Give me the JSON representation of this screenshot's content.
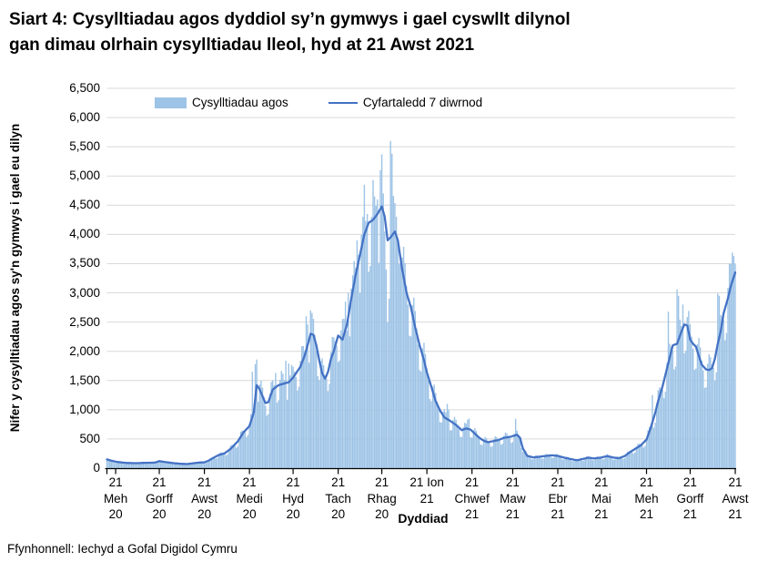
{
  "title": "Siart 4: Cysylltiadau agos dyddiol sy’n gymwys i gael cyswllt dilynol\ngan dimau olrhain cysylltiadau lleol, hyd at 21 Awst 2021",
  "source": "Ffynhonnell: Iechyd a Gofal Digidol Cymru",
  "legend": [
    {
      "label": "Cysylltiadau agos",
      "marker": "bar-swatch"
    },
    {
      "label": "Cyfartaledd 7 diwrnod",
      "marker": "line-sample"
    }
  ],
  "y_axis": {
    "title": "Nifer y cysylltiadau agos sy'n gymwys i gael eu dilyn",
    "tick_labels": [
      "0",
      "500",
      "1,000",
      "1,500",
      "2,000",
      "2,500",
      "3,000",
      "3,500",
      "4,000",
      "4,500",
      "5,000",
      "5,500",
      "6,000",
      "6,500"
    ]
  },
  "x_axis": {
    "title": "Dyddiad",
    "ticks": [
      {
        "lines": [
          "21",
          "Meh",
          "20"
        ]
      },
      {
        "lines": [
          "21",
          "Gorff",
          "20"
        ]
      },
      {
        "lines": [
          "21",
          "Awst",
          "20"
        ]
      },
      {
        "lines": [
          "21",
          "Medi",
          "20"
        ]
      },
      {
        "lines": [
          "21",
          "Hyd",
          "20"
        ]
      },
      {
        "lines": [
          "21",
          "Tach",
          "20"
        ]
      },
      {
        "lines": [
          "21",
          "Rhag",
          "20"
        ]
      },
      {
        "lines": [
          "21 Ion",
          "21"
        ]
      },
      {
        "lines": [
          "21",
          "Chwef",
          "21"
        ]
      },
      {
        "lines": [
          "21",
          "Maw",
          "21"
        ]
      },
      {
        "lines": [
          "21",
          "Ebr",
          "21"
        ]
      },
      {
        "lines": [
          "21",
          "Mai",
          "21"
        ]
      },
      {
        "lines": [
          "21",
          "Meh",
          "21"
        ]
      },
      {
        "lines": [
          "21",
          "Gorff",
          "21"
        ]
      },
      {
        "lines": [
          "21",
          "Awst",
          "21"
        ]
      }
    ]
  },
  "colors": {
    "bar": "#9DC3E6",
    "line": "#4472C4",
    "gridline": "#D9D9D9",
    "axis": "#000000",
    "text": "#000000",
    "background": "#FFFFFF"
  },
  "chart_data": {
    "type": "bar+line",
    "title": "Siart 4: Cysylltiadau agos dyddiol sy’n gymwys i gael cyswllt dilynol gan dimau olrhain cysylltiadau lleol, hyd at 21 Awst 2021",
    "xlabel": "Dyddiad",
    "ylabel": "Nifer y cysylltiadau agos sy'n gymwys i gael eu dilyn",
    "ylim": [
      0,
      6500
    ],
    "grid": true,
    "legend_position": "top",
    "n_days": 433,
    "tick_day_indices": [
      6,
      36,
      67,
      98,
      128,
      159,
      189,
      220,
      251,
      279,
      310,
      340,
      371,
      401,
      432
    ],
    "series": [
      {
        "name": "Cysylltiadau agos",
        "type": "bar",
        "color": "#9DC3E6",
        "daily_model": {
          "baseline": "interpolated 7-day-average points",
          "weekday_factors": [
            1.06,
            1.16,
            1.12,
            1.04,
            0.96,
            0.8,
            0.82
          ],
          "overrides": {
            "100": 1650,
            "102": 1780,
            "103": 1860,
            "116": 1630,
            "123": 1840,
            "125": 1790,
            "137": 2600,
            "138": 2460,
            "140": 2700,
            "164": 2850,
            "166": 3000,
            "169": 3300,
            "172": 3900,
            "173": 3650,
            "176": 4300,
            "177": 4850,
            "179": 4350,
            "182": 4300,
            "184": 4650,
            "186": 4600,
            "188": 5100,
            "189": 5370,
            "190": 4700,
            "191": 4050,
            "192": 3400,
            "193": 2500,
            "194": 2900,
            "195": 5600,
            "196": 5380,
            "199": 4300,
            "200": 3900,
            "201": 3500,
            "202": 3600,
            "234": 1100,
            "235": 1000,
            "248": 830,
            "249": 850,
            "281": 845,
            "375": 1250,
            "386": 2680,
            "392": 3060,
            "393": 2950,
            "396": 2800,
            "420": 2990,
            "421": 2950,
            "430": 3690,
            "431": 3630,
            "432": 3500
          }
        }
      },
      {
        "name": "Cyfartaledd 7 diwrnod",
        "type": "line",
        "color": "#4472C4",
        "points": [
          [
            0,
            150
          ],
          [
            2,
            135
          ],
          [
            6,
            110
          ],
          [
            13,
            90
          ],
          [
            20,
            85
          ],
          [
            27,
            92
          ],
          [
            33,
            95
          ],
          [
            36,
            120
          ],
          [
            40,
            105
          ],
          [
            46,
            85
          ],
          [
            51,
            75
          ],
          [
            55,
            70
          ],
          [
            59,
            82
          ],
          [
            63,
            95
          ],
          [
            67,
            100
          ],
          [
            70,
            130
          ],
          [
            73,
            175
          ],
          [
            77,
            226
          ],
          [
            81,
            255
          ],
          [
            85,
            330
          ],
          [
            90,
            460
          ],
          [
            94,
            615
          ],
          [
            98,
            720
          ],
          [
            101,
            955
          ],
          [
            103,
            1420
          ],
          [
            105,
            1350
          ],
          [
            107,
            1230
          ],
          [
            109,
            1115
          ],
          [
            111,
            1130
          ],
          [
            114,
            1345
          ],
          [
            118,
            1420
          ],
          [
            122,
            1450
          ],
          [
            125,
            1470
          ],
          [
            128,
            1550
          ],
          [
            133,
            1735
          ],
          [
            136,
            1930
          ],
          [
            139,
            2200
          ],
          [
            140,
            2300
          ],
          [
            142,
            2280
          ],
          [
            144,
            2100
          ],
          [
            146,
            1840
          ],
          [
            148,
            1620
          ],
          [
            150,
            1530
          ],
          [
            152,
            1650
          ],
          [
            154,
            1870
          ],
          [
            156,
            2000
          ],
          [
            159,
            2270
          ],
          [
            162,
            2200
          ],
          [
            165,
            2450
          ],
          [
            168,
            2900
          ],
          [
            171,
            3300
          ],
          [
            174,
            3650
          ],
          [
            177,
            4000
          ],
          [
            180,
            4200
          ],
          [
            183,
            4250
          ],
          [
            186,
            4350
          ],
          [
            189,
            4480
          ],
          [
            191,
            4300
          ],
          [
            193,
            3900
          ],
          [
            195,
            3950
          ],
          [
            198,
            4050
          ],
          [
            200,
            3900
          ],
          [
            203,
            3400
          ],
          [
            206,
            3000
          ],
          [
            209,
            2750
          ],
          [
            212,
            2400
          ],
          [
            215,
            2100
          ],
          [
            218,
            1850
          ],
          [
            220,
            1640
          ],
          [
            223,
            1400
          ],
          [
            226,
            1150
          ],
          [
            229,
            990
          ],
          [
            232,
            870
          ],
          [
            236,
            810
          ],
          [
            240,
            740
          ],
          [
            244,
            650
          ],
          [
            247,
            680
          ],
          [
            250,
            660
          ],
          [
            253,
            590
          ],
          [
            256,
            520
          ],
          [
            259,
            470
          ],
          [
            262,
            445
          ],
          [
            265,
            460
          ],
          [
            269,
            480
          ],
          [
            273,
            520
          ],
          [
            277,
            535
          ],
          [
            280,
            555
          ],
          [
            282,
            573
          ],
          [
            284,
            520
          ],
          [
            286,
            340
          ],
          [
            289,
            210
          ],
          [
            293,
            185
          ],
          [
            297,
            195
          ],
          [
            302,
            210
          ],
          [
            306,
            220
          ],
          [
            310,
            210
          ],
          [
            314,
            182
          ],
          [
            319,
            156
          ],
          [
            323,
            135
          ],
          [
            327,
            156
          ],
          [
            331,
            180
          ],
          [
            335,
            166
          ],
          [
            340,
            182
          ],
          [
            344,
            208
          ],
          [
            348,
            182
          ],
          [
            352,
            170
          ],
          [
            356,
            208
          ],
          [
            360,
            280
          ],
          [
            362,
            312
          ],
          [
            367,
            390
          ],
          [
            371,
            490
          ],
          [
            374,
            700
          ],
          [
            377,
            950
          ],
          [
            379,
            1150
          ],
          [
            382,
            1400
          ],
          [
            384,
            1600
          ],
          [
            387,
            1900
          ],
          [
            389,
            2100
          ],
          [
            392,
            2130
          ],
          [
            395,
            2340
          ],
          [
            397,
            2460
          ],
          [
            399,
            2440
          ],
          [
            401,
            2200
          ],
          [
            403,
            2130
          ],
          [
            405,
            2080
          ],
          [
            407,
            1920
          ],
          [
            409,
            1770
          ],
          [
            412,
            1690
          ],
          [
            414,
            1680
          ],
          [
            416,
            1710
          ],
          [
            418,
            1870
          ],
          [
            420,
            2130
          ],
          [
            422,
            2340
          ],
          [
            424,
            2650
          ],
          [
            427,
            2910
          ],
          [
            429,
            3120
          ],
          [
            432,
            3350
          ]
        ]
      }
    ]
  }
}
